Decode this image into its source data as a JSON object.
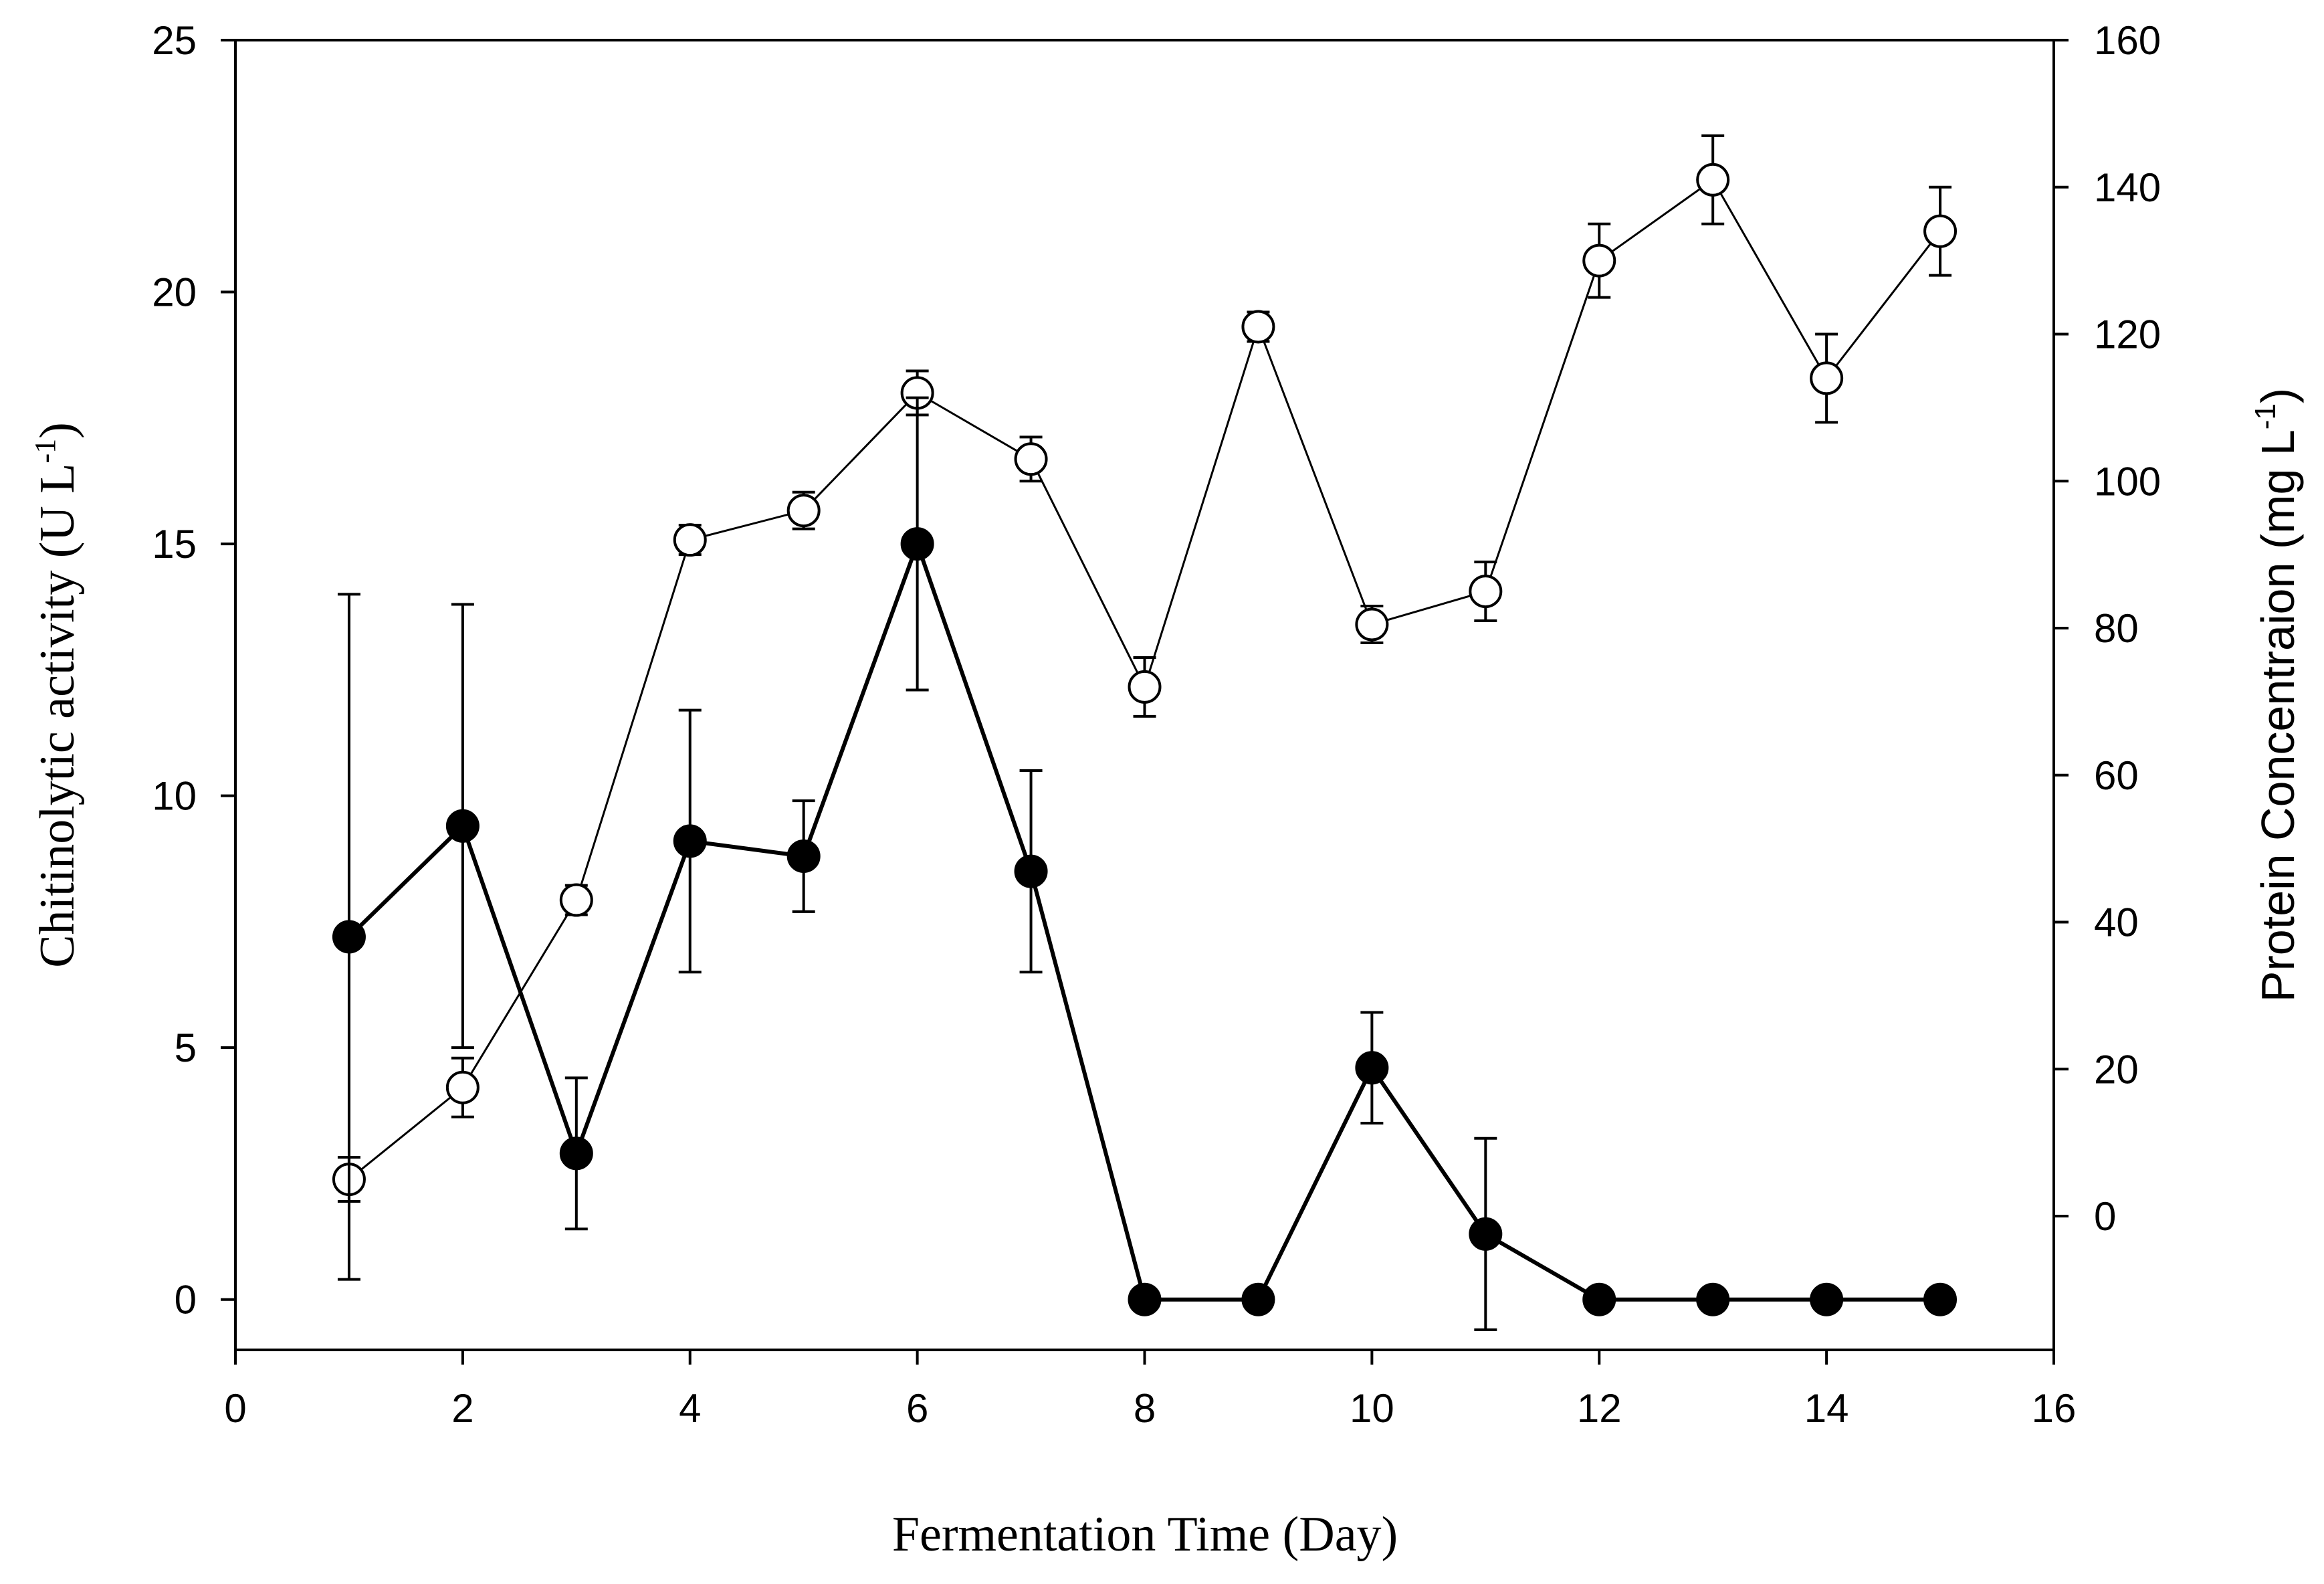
{
  "chart_data": {
    "type": "line",
    "title": "",
    "xlabel": "Fermentation Time (Day)",
    "ylabel_left": {
      "main": "Chitinolytic activity (U L",
      "sup": "-1",
      "close": ")"
    },
    "ylabel_right": {
      "main": "Protein Concentraion (mg L",
      "sup": "-1",
      "close": ")"
    },
    "xlim": [
      0,
      16
    ],
    "ylim_left": [
      -1,
      25
    ],
    "ylim_right": [
      -18.2,
      160
    ],
    "x_ticks": [
      0,
      2,
      4,
      6,
      8,
      10,
      12,
      14,
      16
    ],
    "y_left_ticks": [
      0,
      5,
      10,
      15,
      20,
      25
    ],
    "y_right_ticks": [
      0,
      20,
      40,
      60,
      80,
      100,
      120,
      140,
      160
    ],
    "series": [
      {
        "name": "Chitinolytic activity",
        "axis": "left",
        "marker": "filled-circle",
        "x": [
          1,
          2,
          3,
          4,
          5,
          6,
          7,
          8,
          9,
          10,
          11,
          12,
          13,
          14,
          15
        ],
        "values": [
          7.2,
          9.4,
          2.9,
          9.1,
          8.8,
          15.0,
          8.5,
          0,
          0,
          4.6,
          1.3,
          0,
          0,
          0,
          0
        ],
        "errors": [
          6.8,
          4.4,
          1.5,
          2.6,
          1.1,
          2.9,
          2.0,
          0,
          0,
          1.1,
          1.9,
          0,
          0,
          0,
          0
        ]
      },
      {
        "name": "Protein Concentraion",
        "axis": "right",
        "marker": "open-circle",
        "x": [
          1,
          2,
          3,
          4,
          5,
          6,
          7,
          8,
          9,
          10,
          11,
          12,
          13,
          14,
          15
        ],
        "values": [
          5,
          17.5,
          43,
          92,
          96,
          112,
          103,
          72,
          121,
          80.5,
          85,
          130,
          141,
          114,
          134
        ],
        "errors": [
          3,
          4,
          2,
          2,
          2.5,
          3,
          3,
          4,
          2,
          2.5,
          4,
          5,
          6,
          6,
          6
        ]
      }
    ]
  }
}
